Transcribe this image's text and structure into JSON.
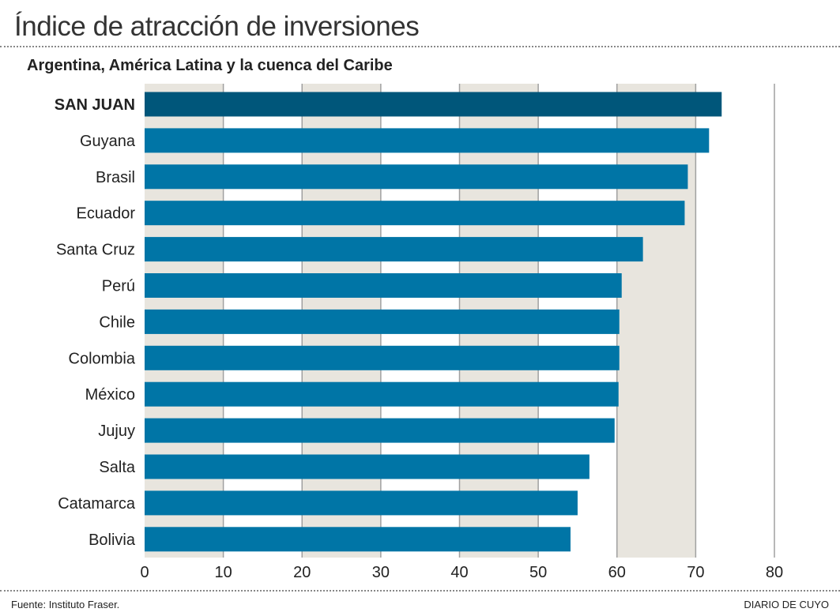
{
  "header": {
    "title": "Índice de atracción de inversiones",
    "subtitle": "Argentina, América Latina y la cuenca del Caribe"
  },
  "footer": {
    "source": "Fuente: Instituto Fraser.",
    "brand": "DIARIO DE CUYO"
  },
  "colors": {
    "highlight": "#00567a",
    "bar": "#0075a6",
    "band": "#e8e5de",
    "grid": "#a0a0a0"
  },
  "chart_data": {
    "type": "bar",
    "orientation": "horizontal",
    "title": "Índice de atracción de inversiones",
    "subtitle": "Argentina, América Latina y la cuenca del Caribe",
    "categories": [
      "SAN JUAN",
      "Guyana",
      "Brasil",
      "Ecuador",
      "Santa Cruz",
      "Perú",
      "Chile",
      "Colombia",
      "México",
      "Jujuy",
      "Salta",
      "Catamarca",
      "Bolivia"
    ],
    "values": [
      73.3,
      71.7,
      69.0,
      68.6,
      63.3,
      60.6,
      60.3,
      60.3,
      60.2,
      59.7,
      56.5,
      55.0,
      54.1
    ],
    "highlight": "SAN JUAN",
    "xlim": [
      0,
      80
    ],
    "xticks": [
      "0",
      "10",
      "20",
      "30",
      "40",
      "50",
      "60",
      "70",
      "80"
    ],
    "grid": true,
    "xlabel": "",
    "ylabel": ""
  }
}
